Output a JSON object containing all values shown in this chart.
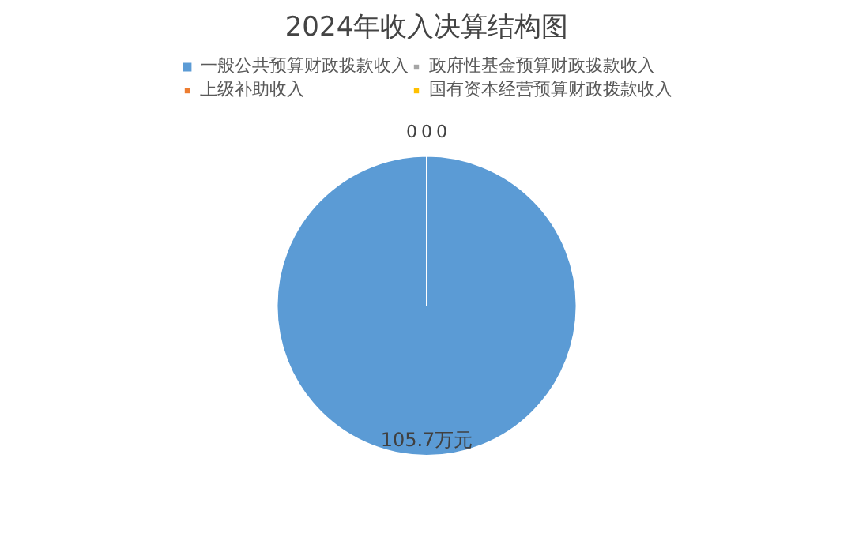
{
  "chart_data": {
    "type": "pie",
    "title": "2024年收入决算结构图",
    "categories": [
      "一般公共预算财政拨款收入",
      "上级补助收入",
      "政府性基金预算财政拨款收入",
      "国有资本经营预算财政拨款收入"
    ],
    "values": [
      105.7,
      0,
      0,
      0
    ],
    "colors": [
      "#5b9bd5",
      "#ed7d31",
      "#a5a5a5",
      "#ffc000"
    ],
    "value_labels": [
      "105.7万元",
      "0",
      "0",
      "0"
    ],
    "legend": "top"
  }
}
